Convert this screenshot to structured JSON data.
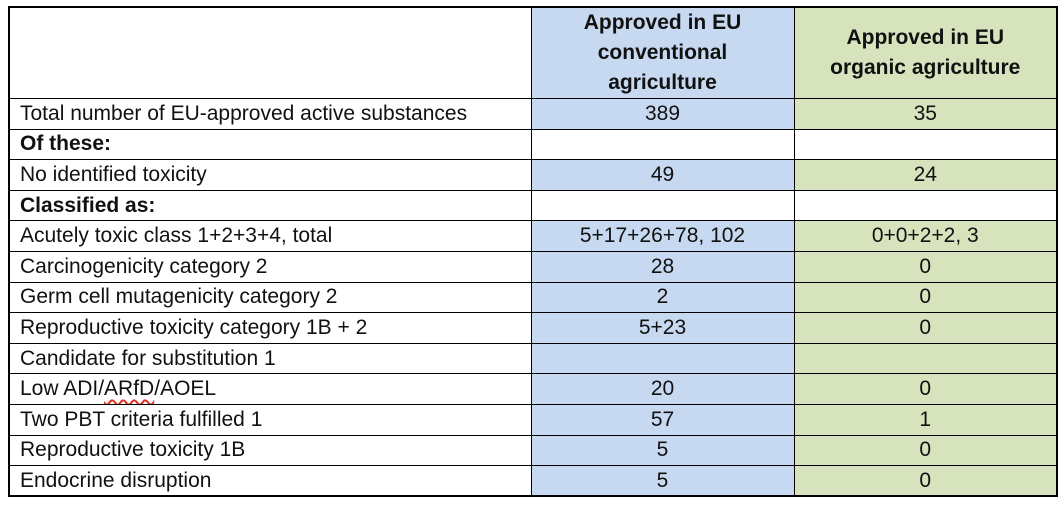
{
  "table": {
    "title_semantic": "EU-approved active substances toxicity comparison",
    "colors": {
      "conventional_fill": "#c6d9f0",
      "organic_fill": "#d6e3bc",
      "border": "#000000",
      "spellcheck_underline": "#e03020",
      "text": "#111111"
    },
    "header": {
      "corner": "",
      "conventional": "Approved in EU conventional agriculture",
      "organic": "Approved in EU organic agriculture"
    },
    "rows": [
      {
        "label": "Total number of EU-approved active substances",
        "conventional": "389",
        "organic": "35"
      },
      {
        "label": "Of these:",
        "conventional": "",
        "organic": ""
      },
      {
        "label": "No identified toxicity",
        "conventional": "49",
        "organic": "24"
      },
      {
        "label": "Classified as:",
        "conventional": "",
        "organic": ""
      },
      {
        "label": "Acutely toxic class 1+2+3+4, total",
        "conventional": "5+17+26+78, 102",
        "organic": "0+0+2+2, 3"
      },
      {
        "label": "Carcinogenicity category 2",
        "conventional": "28",
        "organic": "0"
      },
      {
        "label": "Germ cell mutagenicity category 2",
        "conventional": "2",
        "organic": "0"
      },
      {
        "label": "Reproductive toxicity category 1B + 2",
        "conventional": "5+23",
        "organic": "0"
      },
      {
        "label": "Candidate for substitution 1",
        "conventional": "",
        "organic": ""
      },
      {
        "label_prefix": "Low ADI/",
        "label_spellcheck": "ARfD",
        "label_suffix": "/AOEL",
        "conventional": "20",
        "organic": "0"
      },
      {
        "label": "Two PBT criteria fulfilled 1",
        "conventional": "57",
        "organic": "1"
      },
      {
        "label": "Reproductive toxicity 1B",
        "conventional": "5",
        "organic": "0"
      },
      {
        "label": "Endocrine disruption",
        "conventional": "5",
        "organic": "0"
      }
    ]
  }
}
